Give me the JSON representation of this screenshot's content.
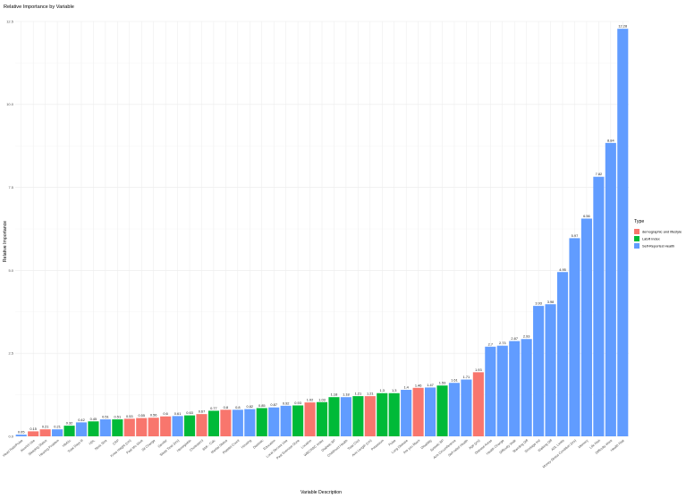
{
  "chart_data": {
    "type": "bar",
    "title": "Relative Importance by Variable",
    "xlabel": "Variable Description",
    "ylabel": "Relative Importance",
    "ylim": [
      0,
      12.5
    ],
    "y_ticks": [
      0.0,
      2.5,
      5.0,
      7.5,
      10.0,
      12.5
    ],
    "y_tick_labels": [
      "0.0",
      "2.5",
      "5.0",
      "7.5",
      "10.0",
      "12.5"
    ],
    "grid": true,
    "legend": {
      "title": "Type",
      "placement": "right",
      "entries": [
        {
          "key": "demo",
          "label": "demographic and lifestyle",
          "color": "#F8766D"
        },
        {
          "key": "lab",
          "label": "Lab/ll index",
          "color": "#00BA38"
        },
        {
          "key": "self",
          "label": "Self-Reported Health",
          "color": "#619CFF"
        }
      ]
    },
    "bars": [
      {
        "category": "Heart Rate/Pulse",
        "value": 0.05,
        "label": "0.05",
        "type": "self"
      },
      {
        "category": "Alcohol Use",
        "value": 0.15,
        "label": "0.15",
        "type": "demo"
      },
      {
        "category": "Sleeping Status",
        "value": 0.21,
        "label": "0.21",
        "type": "demo"
      },
      {
        "category": "Hearing Problem",
        "value": 0.21,
        "label": "0.21",
        "type": "self"
      },
      {
        "category": "HbA1c",
        "value": 0.32,
        "label": "0.32",
        "type": "lab"
      },
      {
        "category": "Total Days Ill",
        "value": 0.42,
        "label": "0.42",
        "type": "self"
      },
      {
        "category": "HDL",
        "value": 0.45,
        "label": "0.45",
        "type": "lab"
      },
      {
        "category": "Neck Size",
        "value": 0.51,
        "label": "0.51",
        "type": "self"
      },
      {
        "category": "CRP",
        "value": 0.51,
        "label": "0.51",
        "type": "lab"
      },
      {
        "category": "Knee Height (cm)",
        "value": 0.53,
        "label": "0.53",
        "type": "demo"
      },
      {
        "category": "Past Mo Work",
        "value": 0.55,
        "label": "0.55",
        "type": "demo"
      },
      {
        "category": "Sit Change",
        "value": 0.56,
        "label": "0.56",
        "type": "demo"
      },
      {
        "category": "Gender",
        "value": 0.6,
        "label": "0.6",
        "type": "demo"
      },
      {
        "category": "Sleep Time (hrs)",
        "value": 0.61,
        "label": "0.61",
        "type": "self"
      },
      {
        "category": "Hemoglobin",
        "value": 0.63,
        "label": "0.63",
        "type": "lab"
      },
      {
        "category": "Cholesterol",
        "value": 0.67,
        "label": "0.67",
        "type": "demo"
      },
      {
        "category": "BMI - Calc",
        "value": 0.77,
        "label": "0.77",
        "type": "lab"
      },
      {
        "category": "Marital Status",
        "value": 0.8,
        "label": "0.8",
        "type": "demo"
      },
      {
        "category": "Platelet Count",
        "value": 0.8,
        "label": "0.8",
        "type": "self"
      },
      {
        "category": "Housing",
        "value": 0.82,
        "label": "0.82",
        "type": "self"
      },
      {
        "category": "Diastolic",
        "value": 0.85,
        "label": "0.85",
        "type": "lab"
      },
      {
        "category": "Education",
        "value": 0.87,
        "label": "0.87",
        "type": "self"
      },
      {
        "category": "Local Service Use",
        "value": 0.92,
        "label": "0.92",
        "type": "self"
      },
      {
        "category": "Past Exercise Done",
        "value": 0.93,
        "label": "0.93",
        "type": "lab"
      },
      {
        "category": "Location",
        "value": 1.02,
        "label": "1.02",
        "type": "demo"
      },
      {
        "category": "WBC/RBC Index",
        "value": 1.03,
        "label": "1.03",
        "type": "lab"
      },
      {
        "category": "Diabetic BP",
        "value": 1.18,
        "label": "1.18",
        "type": "lab"
      },
      {
        "category": "Childhood Health",
        "value": 1.18,
        "label": "1.18",
        "type": "self"
      },
      {
        "category": "Total Chol",
        "value": 1.21,
        "label": "1.21",
        "type": "lab"
      },
      {
        "category": "Arm Length (cm)",
        "value": 1.21,
        "label": "1.21",
        "type": "demo"
      },
      {
        "category": "Potassium",
        "value": 1.3,
        "label": "1.3",
        "type": "lab"
      },
      {
        "category": "Pulse",
        "value": 1.3,
        "label": "1.3",
        "type": "lab"
      },
      {
        "category": "Lung Disease",
        "value": 1.4,
        "label": "1.4",
        "type": "self"
      },
      {
        "category": "Are you Black",
        "value": 1.46,
        "label": "1.46",
        "type": "demo"
      },
      {
        "category": "Disability",
        "value": 1.47,
        "label": "1.47",
        "type": "self"
      },
      {
        "category": "Systolic BP",
        "value": 1.53,
        "label": "1.53",
        "type": "lab"
      },
      {
        "category": "Arm Circumference",
        "value": 1.61,
        "label": "1.61",
        "type": "self"
      },
      {
        "category": "Self-rated Health",
        "value": 1.71,
        "label": "1.71",
        "type": "self"
      },
      {
        "category": "Age (yrs)",
        "value": 1.93,
        "label": "1.93",
        "type": "demo"
      },
      {
        "category": "Disease Areas",
        "value": 2.7,
        "label": "2.7",
        "type": "self"
      },
      {
        "category": "Health Change",
        "value": 2.73,
        "label": "2.73",
        "type": "self"
      },
      {
        "category": "Difficulty Walk",
        "value": 2.87,
        "label": "2.87",
        "type": "self"
      },
      {
        "category": "Standing Diff",
        "value": 2.93,
        "label": "2.93",
        "type": "self"
      },
      {
        "category": "Shortage Ind",
        "value": 3.93,
        "label": "3.93",
        "type": "self"
      },
      {
        "category": "Walking Diff",
        "value": 3.98,
        "label": "3.98",
        "type": "self"
      },
      {
        "category": "ADL Limits",
        "value": 4.95,
        "label": "4.95",
        "type": "self"
      },
      {
        "category": "Money Stress Condition (hrs)",
        "value": 5.97,
        "label": "5.97",
        "type": "self"
      },
      {
        "category": "Memory",
        "value": 6.56,
        "label": "6.56",
        "type": "self"
      },
      {
        "category": "Life Risk",
        "value": 7.82,
        "label": "7.82",
        "type": "self"
      },
      {
        "category": "Difficulty Work",
        "value": 8.84,
        "label": "8.84",
        "type": "self"
      },
      {
        "category": "Health Risk",
        "value": 12.28,
        "label": "12.28",
        "type": "self"
      }
    ]
  }
}
